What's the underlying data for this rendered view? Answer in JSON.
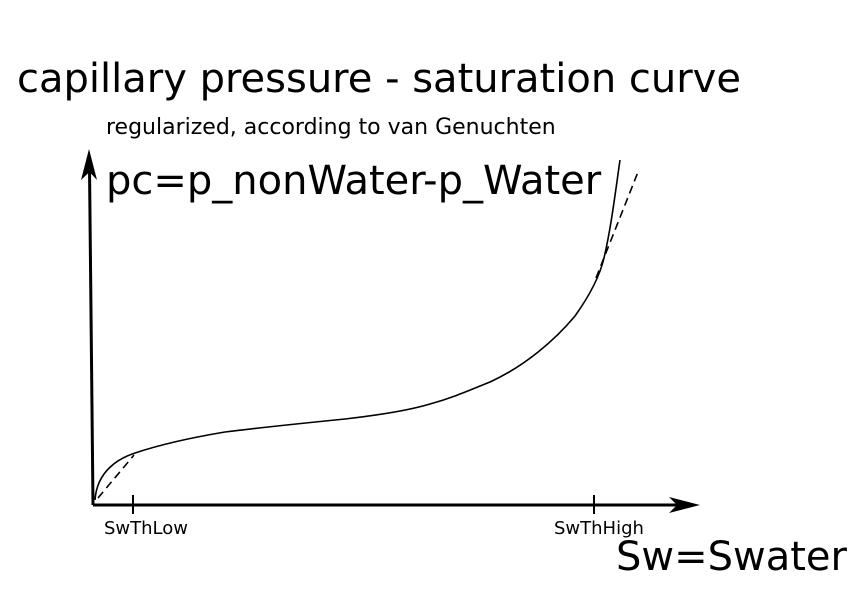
{
  "title": "capillary pressure - saturation curve",
  "subtitle": "regularized, according to van Genuchten",
  "y_axis_label": "pc=p_nonWater-p_Water",
  "x_axis_label": "Sw=Swater",
  "ticks": {
    "low": "SwThLow",
    "high": "SwThHigh"
  },
  "styles": {
    "line_color": "#000000",
    "background": "#ffffff"
  }
}
